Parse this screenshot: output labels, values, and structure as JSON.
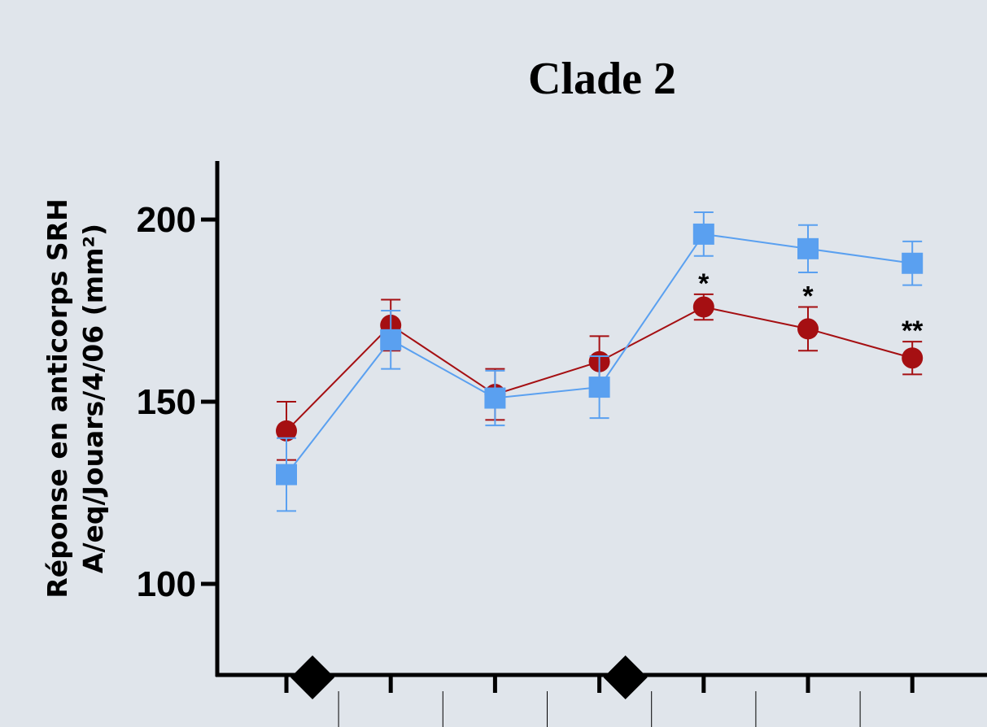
{
  "colors": {
    "background": "#e0e5eb",
    "series_circle": "#a50f12",
    "series_square": "#5aa0f0",
    "axis": "#000000"
  },
  "chart_data": {
    "type": "line",
    "title": "Clade 2",
    "ylabel_line1": "Réponse en anticorps SRH",
    "ylabel_line2": "A/eq/Jouars/4/06 (mm²)",
    "xlabel": "",
    "ylim": [
      75,
      215
    ],
    "yticks": [
      100,
      150,
      200
    ],
    "ytick_labels": [
      "100",
      "150",
      "200"
    ],
    "x": [
      1,
      2,
      3,
      4,
      5,
      6,
      7
    ],
    "x_tick_labels": [
      "",
      "",
      "",
      "",
      "",
      "",
      ""
    ],
    "markers_on_axis": [
      1.25,
      4.25
    ],
    "markers_shape": "diamond",
    "grid": false,
    "legend": "none",
    "series": [
      {
        "marker": "circle",
        "color": "#a50f12",
        "values": [
          142,
          171,
          152,
          161,
          176,
          170,
          162
        ],
        "err": [
          8,
          7,
          7,
          7,
          3.5,
          6,
          4.5
        ]
      },
      {
        "marker": "square",
        "color": "#5aa0f0",
        "values": [
          130,
          167,
          151,
          154,
          196,
          192,
          188
        ],
        "err": [
          10,
          8,
          7.5,
          8.5,
          6,
          6.5,
          6
        ]
      }
    ],
    "annotations": [
      {
        "x": 5,
        "text": "*"
      },
      {
        "x": 6,
        "text": "*"
      },
      {
        "x": 7,
        "text": "**"
      }
    ]
  }
}
